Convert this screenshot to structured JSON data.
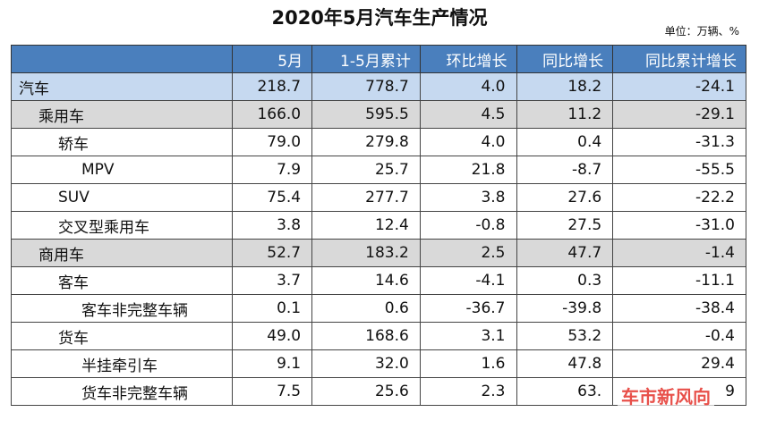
{
  "header": {
    "title": "2020年5月汽车生产情况",
    "unit": "单位：万辆、%"
  },
  "table": {
    "columns": [
      "5月",
      "1-5月累计",
      "环比增长",
      "同比增长",
      "同比累计增长"
    ],
    "rows": [
      [
        "汽车",
        "218.7",
        "778.7",
        "4.0",
        "18.2",
        "-24.1"
      ],
      [
        "乘用车",
        "166.0",
        "595.5",
        "4.5",
        "11.2",
        "-29.1"
      ],
      [
        "轿车",
        "79.0",
        "279.8",
        "4.0",
        "0.4",
        "-31.3"
      ],
      [
        "MPV",
        "7.9",
        "25.7",
        "21.8",
        "-8.7",
        "-55.5"
      ],
      [
        "SUV",
        "75.4",
        "277.7",
        "3.8",
        "27.6",
        "-22.2"
      ],
      [
        "交叉型乘用车",
        "3.8",
        "12.4",
        "-0.8",
        "27.5",
        "-31.0"
      ],
      [
        "商用车",
        "52.7",
        "183.2",
        "2.5",
        "47.7",
        "-1.4"
      ],
      [
        "客车",
        "3.7",
        "14.6",
        "-4.1",
        "0.3",
        "-11.1"
      ],
      [
        "客车非完整车辆",
        "0.1",
        "0.6",
        "-36.7",
        "-39.8",
        "-38.4"
      ],
      [
        "货车",
        "49.0",
        "168.6",
        "3.1",
        "53.2",
        "-0.4"
      ],
      [
        "半挂牵引车",
        "9.1",
        "32.0",
        "1.6",
        "47.8",
        "29.4"
      ],
      [
        "货车非完整车辆",
        "7.5",
        "25.6",
        "2.3",
        "63.",
        "9"
      ]
    ]
  },
  "watermark": "车市新风向"
}
